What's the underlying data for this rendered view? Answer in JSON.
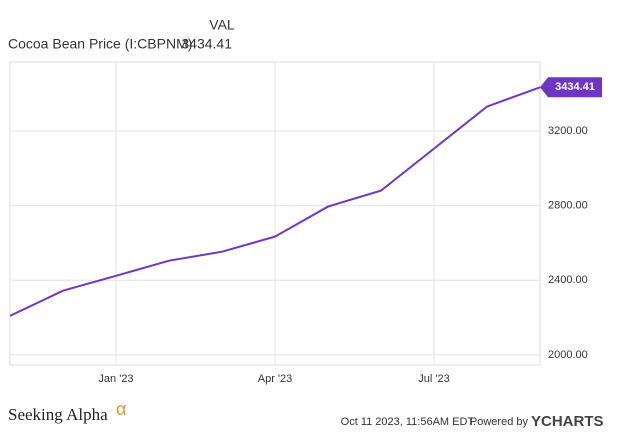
{
  "chart_data": {
    "type": "line",
    "value_header": "VAL",
    "categories": [
      null,
      null,
      "Jan '23",
      null,
      null,
      "Apr '23",
      null,
      null,
      "Jul '23",
      null,
      null
    ],
    "series": [
      {
        "name": "Cocoa Bean Price (I:CBPNM)",
        "color": "#6f36c5",
        "values": [
          2209,
          2344,
          2424,
          2505,
          2553,
          2634,
          2795,
          2881,
          3106,
          3331,
          3434.41
        ]
      }
    ],
    "ylim": [
      1946,
      3570
    ],
    "yticks": [
      {
        "value": 2000,
        "label": "2000.00"
      },
      {
        "value": 2400,
        "label": "2400.00"
      },
      {
        "value": 2800,
        "label": "2800.00"
      },
      {
        "value": 3200,
        "label": "3200.00"
      }
    ],
    "grid": true,
    "footer": {
      "brand": "Seeking Alpha",
      "brand_mark": "α",
      "timestamp": "Oct 11 2023, 11:56AM EDT.",
      "powered": "Powered by",
      "provider": "YCHARTS"
    }
  }
}
